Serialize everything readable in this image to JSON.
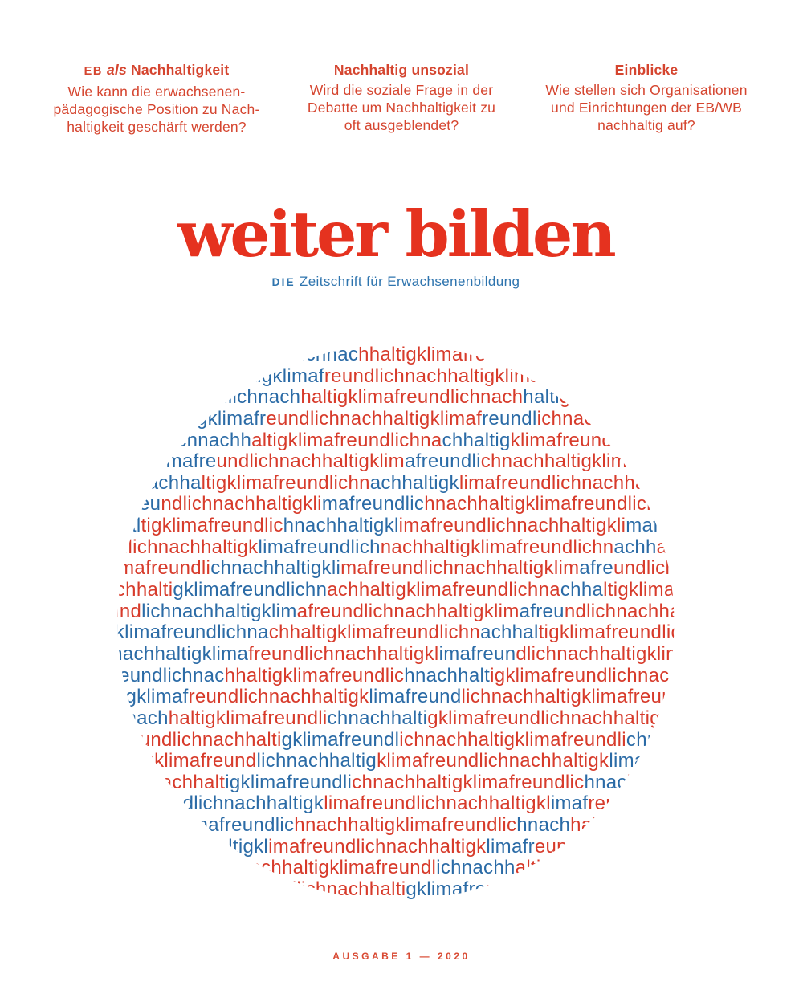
{
  "header": {
    "text_color": "#d5452f",
    "columns": [
      {
        "title_smallcaps": "EB",
        "title_italic": "als",
        "title_rest": "Nachhaltigkeit",
        "body_lines": [
          "Wie kann die erwachsenen-",
          "pädagogische Position zu Nach-",
          "haltigkeit geschärft werden?"
        ]
      },
      {
        "title": "Nachhaltig unsozial",
        "body_lines": [
          "Wird die soziale Frage in der",
          "Debatte um Nachhaltigkeit zu",
          "oft ausgeblendet?"
        ]
      },
      {
        "title": "Einblicke",
        "body_lines": [
          "Wie stellen sich Organisationen",
          "und Einrichtungen der EB/WB",
          "nachhaltig auf?"
        ]
      }
    ]
  },
  "masthead": {
    "title": "weiter bilden",
    "title_color": "#e5321f",
    "subtitle_prefix": "DIE",
    "subtitle_rest": "Zeitschrift für Erwachsenenbildung",
    "subtitle_color": "#2e74ae"
  },
  "wordcloud": {
    "phrase": "nachhaltigklimafreundlich",
    "words": [
      "nachhaltig",
      "klimafreundlich"
    ],
    "red": "#d73b2b",
    "blue": "#2b6ba6",
    "rows": 26,
    "chars_per_row": 70,
    "start_index": 23,
    "row_shift": 16,
    "pattern": {
      "period": 30,
      "row_slope": 3,
      "base_width": 10,
      "width_growth": 0.3,
      "max_width": 26
    }
  },
  "footer": {
    "issue_label": "AUSGABE 1 — 2020",
    "color": "#d94a33"
  }
}
